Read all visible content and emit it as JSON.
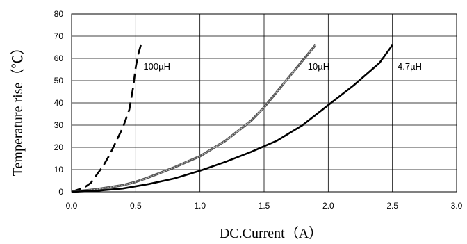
{
  "chart_data": {
    "type": "line",
    "xlabel": "DC.Current（A）",
    "ylabel": "Temperature rise（℃）",
    "xlim": [
      0,
      3
    ],
    "ylim": [
      0,
      80
    ],
    "xticks": [
      "0.0",
      "0.5",
      "1.0",
      "1.5",
      "2.0",
      "2.5",
      "3.0"
    ],
    "yticks": [
      "0",
      "10",
      "20",
      "30",
      "40",
      "50",
      "60",
      "70",
      "80"
    ],
    "grid": true,
    "legend": "none",
    "series": [
      {
        "name": "100µH",
        "style": "dashed",
        "color": "#000000",
        "x": [
          0.0,
          0.05,
          0.1,
          0.15,
          0.2,
          0.25,
          0.3,
          0.35,
          0.4,
          0.45,
          0.48,
          0.5,
          0.52,
          0.54
        ],
        "y": [
          0,
          1,
          2,
          4,
          8,
          12,
          17,
          23,
          29,
          37,
          47,
          56,
          62,
          66
        ]
      },
      {
        "name": "10µH",
        "style": "striped",
        "color": "#555555",
        "x": [
          0.0,
          0.2,
          0.4,
          0.5,
          0.6,
          0.8,
          1.0,
          1.2,
          1.4,
          1.5,
          1.6,
          1.7,
          1.8,
          1.9
        ],
        "y": [
          0,
          1.2,
          3,
          4.5,
          6.5,
          11,
          16,
          23,
          32,
          38,
          45,
          52,
          59,
          66
        ]
      },
      {
        "name": "4.7µH",
        "style": "solid",
        "color": "#000000",
        "x": [
          0.0,
          0.2,
          0.4,
          0.6,
          0.8,
          1.0,
          1.2,
          1.4,
          1.6,
          1.8,
          2.0,
          2.2,
          2.4,
          2.5
        ],
        "y": [
          0,
          0.5,
          1.5,
          3.5,
          6,
          9.5,
          13.5,
          18,
          23,
          30,
          39,
          48,
          58,
          66
        ]
      }
    ],
    "annotations": [
      {
        "text": "100µH",
        "x": 0.56,
        "y": 55
      },
      {
        "text": "10µH",
        "x": 1.84,
        "y": 55
      },
      {
        "text": "4.7µH",
        "x": 2.54,
        "y": 55
      }
    ]
  }
}
